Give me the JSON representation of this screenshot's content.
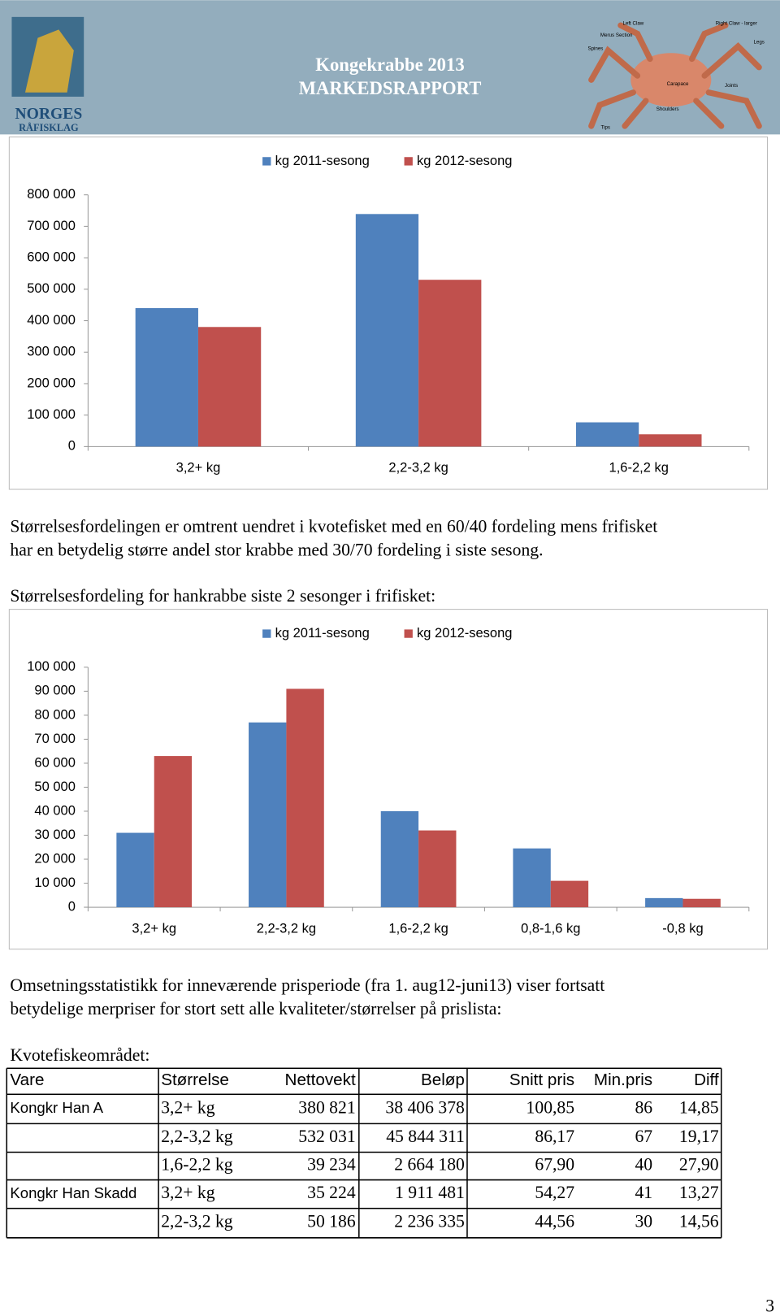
{
  "header": {
    "logo_lines": [
      "NORGES",
      "RÅFISKLAG"
    ],
    "title_lines": [
      "Kongekrabbe 2013",
      "MARKEDSRAPPORT"
    ],
    "crab_labels": [
      "Left Claw",
      "Right Claw - larger",
      "Merus Section",
      "Legs",
      "Spines",
      "Carapace",
      "Joints",
      "Shoulders",
      "Tips"
    ]
  },
  "chart_data": [
    {
      "type": "bar",
      "categories": [
        "3,2+ kg",
        "2,2-3,2 kg",
        "1,6-2,2 kg"
      ],
      "series": [
        {
          "name": "kg 2011-sesong",
          "color": "#4f81bd",
          "values": [
            440000,
            739000,
            77000
          ]
        },
        {
          "name": "kg 2012-sesong",
          "color": "#c0504d",
          "values": [
            380000,
            530000,
            39000
          ]
        }
      ],
      "ylim": [
        0,
        800000
      ],
      "yticks": [
        0,
        {
          "value": 100000,
          "label": "100 000"
        },
        {
          "value": 200000,
          "label": "200 000"
        },
        {
          "value": 300000,
          "label": "300 000"
        },
        {
          "value": 400000,
          "label": "400 000"
        },
        {
          "value": 500000,
          "label": "500 000"
        },
        {
          "value": 600000,
          "label": "600 000"
        },
        {
          "value": 700000,
          "label": "700 000"
        },
        {
          "value": 800000,
          "label": "800 000"
        }
      ],
      "grid": false,
      "legend": "top"
    },
    {
      "type": "bar",
      "categories": [
        "3,2+ kg",
        "2,2-3,2 kg",
        "1,6-2,2 kg",
        "0,8-1,6 kg",
        "-0,8 kg"
      ],
      "series": [
        {
          "name": "kg 2011-sesong",
          "color": "#4f81bd",
          "values": [
            31000,
            77000,
            40000,
            24500,
            3800
          ]
        },
        {
          "name": "kg 2012-sesong",
          "color": "#c0504d",
          "values": [
            63000,
            91000,
            32000,
            11000,
            3500
          ]
        }
      ],
      "ylim": [
        0,
        100000
      ],
      "yticks": [
        0,
        {
          "value": 10000,
          "label": "10 000"
        },
        {
          "value": 20000,
          "label": "20 000"
        },
        {
          "value": 30000,
          "label": "30 000"
        },
        {
          "value": 40000,
          "label": "40 000"
        },
        {
          "value": 50000,
          "label": "50 000"
        },
        {
          "value": 60000,
          "label": "60 000"
        },
        {
          "value": 70000,
          "label": "70 000"
        },
        {
          "value": 80000,
          "label": "80 000"
        },
        {
          "value": 90000,
          "label": "90 000"
        },
        {
          "value": 100000,
          "label": "100 000"
        }
      ],
      "grid": false,
      "legend": "top"
    }
  ],
  "paragraphs": [
    {
      "lines": [
        "Størrelsesfordelingen er omtrent uendret i kvotefisket med en 60/40 fordeling mens frifisket",
        "har en betydelig større andel stor krabbe med 30/70 fordeling i siste sesong."
      ]
    },
    {
      "lines": [
        "Størrelsesfordeling for hankrabbe siste 2 sesonger i frifisket:"
      ]
    },
    {
      "lines": [
        "Omsetningsstatistikk for inneværende prisperiode (fra 1. aug12-juni13) viser fortsatt",
        "betydelige merpriser for stort sett alle kvaliteter/størrelser på prislista:"
      ]
    },
    {
      "lines": [
        "Kvotefiskeområdet:"
      ]
    }
  ],
  "table": {
    "header": [
      "Vare",
      "Størrelse",
      "Nettovekt",
      "Beløp",
      "Snitt pris",
      "Min.pris",
      "Diff"
    ],
    "rows": [
      [
        "Kongkr Han A",
        "3,2+ kg",
        "380 821",
        "38 406 378",
        "100,85",
        "86",
        "14,85"
      ],
      [
        null,
        "2,2-3,2 kg",
        "532 031",
        "45 844 311",
        "86,17",
        "67",
        "19,17"
      ],
      [
        null,
        "1,6-2,2 kg",
        "39 234",
        "2 664 180",
        "67,90",
        "40",
        "27,90"
      ],
      [
        "Kongkr Han Skadd",
        "3,2+ kg",
        "35 224",
        "1 911 481",
        "54,27",
        "41",
        "13,27"
      ],
      [
        null,
        "2,2-3,2 kg",
        "50 186",
        "2 236 335",
        "44,56",
        "30",
        "14,56"
      ]
    ]
  },
  "page_number": "3"
}
